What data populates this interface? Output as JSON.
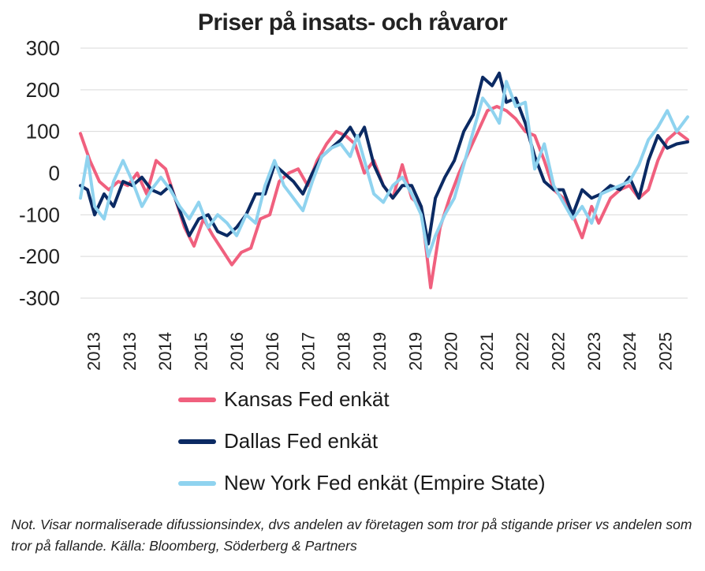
{
  "chart_data": {
    "type": "line",
    "title": "Priser på insats- och råvaror",
    "xlabel": "",
    "ylabel": "",
    "ylim": [
      -300,
      300
    ],
    "yticks": [
      "300",
      "200",
      "100",
      "0",
      "-100",
      "-200",
      "-300"
    ],
    "xticks": [
      "2013",
      "2013",
      "2014",
      "2015",
      "2016",
      "2016",
      "2017",
      "2018",
      "2019",
      "2019",
      "2020",
      "2021",
      "2022",
      "2022",
      "2023",
      "2024",
      "2025"
    ],
    "x_range": [
      2013.0,
      2025.83
    ],
    "grid": "horizontal",
    "legend_position": "bottom",
    "series": [
      {
        "name": "Kansas Fed enkät",
        "color": "#f0607e",
        "points": [
          [
            2013.0,
            95
          ],
          [
            2013.2,
            30
          ],
          [
            2013.4,
            -20
          ],
          [
            2013.6,
            -40
          ],
          [
            2013.8,
            -20
          ],
          [
            2014.0,
            -30
          ],
          [
            2014.2,
            0
          ],
          [
            2014.4,
            -50
          ],
          [
            2014.6,
            30
          ],
          [
            2014.8,
            10
          ],
          [
            2015.0,
            -60
          ],
          [
            2015.2,
            -130
          ],
          [
            2015.4,
            -175
          ],
          [
            2015.6,
            -110
          ],
          [
            2015.8,
            -150
          ],
          [
            2016.0,
            -185
          ],
          [
            2016.2,
            -220
          ],
          [
            2016.4,
            -190
          ],
          [
            2016.6,
            -180
          ],
          [
            2016.8,
            -110
          ],
          [
            2017.0,
            -100
          ],
          [
            2017.2,
            -20
          ],
          [
            2017.4,
            0
          ],
          [
            2017.6,
            10
          ],
          [
            2017.8,
            -30
          ],
          [
            2018.0,
            30
          ],
          [
            2018.2,
            70
          ],
          [
            2018.4,
            100
          ],
          [
            2018.6,
            90
          ],
          [
            2018.8,
            70
          ],
          [
            2019.0,
            0
          ],
          [
            2019.2,
            30
          ],
          [
            2019.4,
            -30
          ],
          [
            2019.6,
            -60
          ],
          [
            2019.8,
            20
          ],
          [
            2020.0,
            -60
          ],
          [
            2020.2,
            -80
          ],
          [
            2020.4,
            -275
          ],
          [
            2020.6,
            -130
          ],
          [
            2020.8,
            -60
          ],
          [
            2021.0,
            0
          ],
          [
            2021.2,
            50
          ],
          [
            2021.4,
            100
          ],
          [
            2021.6,
            150
          ],
          [
            2021.8,
            160
          ],
          [
            2022.0,
            150
          ],
          [
            2022.2,
            130
          ],
          [
            2022.4,
            100
          ],
          [
            2022.6,
            90
          ],
          [
            2022.8,
            30
          ],
          [
            2023.0,
            -40
          ],
          [
            2023.2,
            -60
          ],
          [
            2023.4,
            -100
          ],
          [
            2023.6,
            -155
          ],
          [
            2023.8,
            -80
          ],
          [
            2023.95,
            -120
          ],
          [
            2024.2,
            -60
          ],
          [
            2024.4,
            -40
          ],
          [
            2024.6,
            -30
          ],
          [
            2024.8,
            -60
          ],
          [
            2025.0,
            -40
          ],
          [
            2025.2,
            30
          ],
          [
            2025.4,
            80
          ],
          [
            2025.6,
            100
          ],
          [
            2025.83,
            80
          ]
        ]
      },
      {
        "name": "Dallas Fed enkät",
        "color": "#0b2a63",
        "points": [
          [
            2013.0,
            -30
          ],
          [
            2013.15,
            -40
          ],
          [
            2013.3,
            -100
          ],
          [
            2013.5,
            -50
          ],
          [
            2013.7,
            -80
          ],
          [
            2013.9,
            -20
          ],
          [
            2014.1,
            -30
          ],
          [
            2014.3,
            -10
          ],
          [
            2014.5,
            -40
          ],
          [
            2014.7,
            -50
          ],
          [
            2014.9,
            -30
          ],
          [
            2015.1,
            -90
          ],
          [
            2015.3,
            -150
          ],
          [
            2015.5,
            -110
          ],
          [
            2015.7,
            -100
          ],
          [
            2015.9,
            -140
          ],
          [
            2016.1,
            -150
          ],
          [
            2016.3,
            -130
          ],
          [
            2016.5,
            -100
          ],
          [
            2016.7,
            -50
          ],
          [
            2016.9,
            -50
          ],
          [
            2017.1,
            20
          ],
          [
            2017.3,
            0
          ],
          [
            2017.5,
            -20
          ],
          [
            2017.7,
            -50
          ],
          [
            2017.9,
            0
          ],
          [
            2018.1,
            40
          ],
          [
            2018.3,
            60
          ],
          [
            2018.5,
            80
          ],
          [
            2018.7,
            110
          ],
          [
            2018.85,
            80
          ],
          [
            2019.0,
            110
          ],
          [
            2019.2,
            20
          ],
          [
            2019.4,
            -30
          ],
          [
            2019.6,
            -60
          ],
          [
            2019.8,
            -30
          ],
          [
            2020.0,
            -30
          ],
          [
            2020.2,
            -80
          ],
          [
            2020.35,
            -170
          ],
          [
            2020.5,
            -60
          ],
          [
            2020.7,
            -10
          ],
          [
            2020.9,
            30
          ],
          [
            2021.1,
            100
          ],
          [
            2021.3,
            140
          ],
          [
            2021.5,
            230
          ],
          [
            2021.7,
            210
          ],
          [
            2021.85,
            240
          ],
          [
            2022.0,
            170
          ],
          [
            2022.2,
            180
          ],
          [
            2022.4,
            120
          ],
          [
            2022.6,
            40
          ],
          [
            2022.8,
            -20
          ],
          [
            2023.0,
            -40
          ],
          [
            2023.2,
            -40
          ],
          [
            2023.4,
            -100
          ],
          [
            2023.6,
            -40
          ],
          [
            2023.8,
            -60
          ],
          [
            2024.0,
            -50
          ],
          [
            2024.2,
            -30
          ],
          [
            2024.4,
            -40
          ],
          [
            2024.6,
            -10
          ],
          [
            2024.8,
            -60
          ],
          [
            2025.0,
            30
          ],
          [
            2025.2,
            90
          ],
          [
            2025.4,
            60
          ],
          [
            2025.6,
            70
          ],
          [
            2025.83,
            75
          ]
        ]
      },
      {
        "name": "New York Fed enkät (Empire State)",
        "color": "#8fd3ef",
        "points": [
          [
            2013.0,
            -60
          ],
          [
            2013.15,
            40
          ],
          [
            2013.3,
            -80
          ],
          [
            2013.5,
            -110
          ],
          [
            2013.7,
            -20
          ],
          [
            2013.9,
            30
          ],
          [
            2014.1,
            -20
          ],
          [
            2014.3,
            -80
          ],
          [
            2014.5,
            -40
          ],
          [
            2014.7,
            -10
          ],
          [
            2014.9,
            -40
          ],
          [
            2015.1,
            -80
          ],
          [
            2015.3,
            -110
          ],
          [
            2015.5,
            -70
          ],
          [
            2015.7,
            -130
          ],
          [
            2015.9,
            -100
          ],
          [
            2016.1,
            -120
          ],
          [
            2016.3,
            -150
          ],
          [
            2016.5,
            -100
          ],
          [
            2016.7,
            -120
          ],
          [
            2016.9,
            -30
          ],
          [
            2017.1,
            30
          ],
          [
            2017.3,
            -30
          ],
          [
            2017.5,
            -60
          ],
          [
            2017.7,
            -90
          ],
          [
            2017.9,
            -20
          ],
          [
            2018.1,
            40
          ],
          [
            2018.3,
            60
          ],
          [
            2018.5,
            70
          ],
          [
            2018.7,
            40
          ],
          [
            2018.85,
            90
          ],
          [
            2019.0,
            30
          ],
          [
            2019.2,
            -50
          ],
          [
            2019.4,
            -70
          ],
          [
            2019.6,
            -30
          ],
          [
            2019.8,
            -10
          ],
          [
            2020.0,
            -50
          ],
          [
            2020.2,
            -100
          ],
          [
            2020.35,
            -200
          ],
          [
            2020.5,
            -150
          ],
          [
            2020.7,
            -100
          ],
          [
            2020.9,
            -60
          ],
          [
            2021.1,
            20
          ],
          [
            2021.3,
            100
          ],
          [
            2021.5,
            180
          ],
          [
            2021.7,
            150
          ],
          [
            2021.85,
            120
          ],
          [
            2022.0,
            220
          ],
          [
            2022.2,
            160
          ],
          [
            2022.4,
            170
          ],
          [
            2022.6,
            10
          ],
          [
            2022.8,
            70
          ],
          [
            2023.0,
            -30
          ],
          [
            2023.2,
            -70
          ],
          [
            2023.4,
            -110
          ],
          [
            2023.6,
            -80
          ],
          [
            2023.8,
            -120
          ],
          [
            2024.0,
            -50
          ],
          [
            2024.2,
            -40
          ],
          [
            2024.4,
            -30
          ],
          [
            2024.6,
            -20
          ],
          [
            2024.8,
            20
          ],
          [
            2025.0,
            80
          ],
          [
            2025.2,
            110
          ],
          [
            2025.4,
            150
          ],
          [
            2025.6,
            100
          ],
          [
            2025.83,
            135
          ]
        ]
      }
    ]
  },
  "note": "Not. Visar normaliserade difussionsindex, dvs andelen av företagen som tror på stigande priser vs andelen som tror på fallande. Källa: Bloomberg, Söderberg & Partners"
}
